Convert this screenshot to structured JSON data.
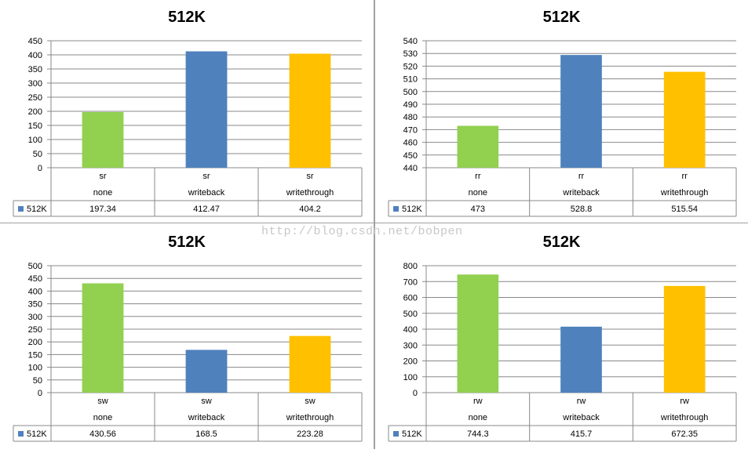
{
  "watermark": "http://blog.csdn.net/bobpen",
  "colors": [
    "#92d050",
    "#4f81bd",
    "#ffc000"
  ],
  "chart_data": [
    {
      "type": "bar",
      "title": "512K",
      "categories": [
        [
          "sr",
          "none"
        ],
        [
          "sr",
          "writeback"
        ],
        [
          "sr",
          "writethrough"
        ]
      ],
      "series": [
        {
          "name": "512K",
          "values": [
            197.34,
            412.47,
            404.2
          ],
          "value_labels": [
            "197.34",
            "412.47",
            "404.2"
          ]
        }
      ],
      "ylim": [
        0,
        450
      ],
      "ytick_step": 50,
      "grid": true,
      "legend": "data-table"
    },
    {
      "type": "bar",
      "title": "512K",
      "categories": [
        [
          "rr",
          "none"
        ],
        [
          "rr",
          "writeback"
        ],
        [
          "rr",
          "writethrough"
        ]
      ],
      "series": [
        {
          "name": "512K",
          "values": [
            473,
            528.8,
            515.54
          ],
          "value_labels": [
            "473",
            "528.8",
            "515.54"
          ]
        }
      ],
      "ylim": [
        440,
        540
      ],
      "ytick_step": 10,
      "grid": true,
      "legend": "data-table"
    },
    {
      "type": "bar",
      "title": "512K",
      "categories": [
        [
          "sw",
          "none"
        ],
        [
          "sw",
          "writeback"
        ],
        [
          "sw",
          "writethrough"
        ]
      ],
      "series": [
        {
          "name": "512K",
          "values": [
            430.56,
            168.5,
            223.28
          ],
          "value_labels": [
            "430.56",
            "168.5",
            "223.28"
          ]
        }
      ],
      "ylim": [
        0,
        500
      ],
      "ytick_step": 50,
      "grid": true,
      "legend": "data-table"
    },
    {
      "type": "bar",
      "title": "512K",
      "categories": [
        [
          "rw",
          "none"
        ],
        [
          "rw",
          "writeback"
        ],
        [
          "rw",
          "writethrough"
        ]
      ],
      "series": [
        {
          "name": "512K",
          "values": [
            744.3,
            415.7,
            672.35
          ],
          "value_labels": [
            "744.3",
            "415.7",
            "672.35"
          ]
        }
      ],
      "ylim": [
        0,
        800
      ],
      "ytick_step": 100,
      "grid": true,
      "legend": "data-table"
    }
  ]
}
